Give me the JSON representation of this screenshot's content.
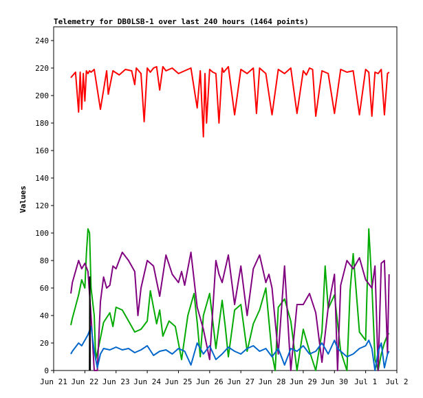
{
  "chart_data": {
    "type": "line",
    "title": "Telemetry for DB0LSB-1 over last 240 hours (1464 points)",
    "xlabel": "",
    "ylabel": "Values",
    "x_ticks": [
      "Jun 21",
      "Jun 22",
      "Jun 23",
      "Jun 24",
      "Jun 25",
      "Jun 26",
      "Jun 27",
      "Jun 28",
      "Jun 29",
      "Jun 30",
      "Jul 1",
      "Jul 2"
    ],
    "xlim": [
      0,
      11
    ],
    "ylim": [
      0,
      250
    ],
    "y_ticks": [
      0,
      20,
      40,
      60,
      80,
      100,
      120,
      140,
      160,
      180,
      200,
      220,
      240
    ],
    "grid": false,
    "series": [
      {
        "color": "#ff0000",
        "x": [
          0.55,
          0.7,
          0.8,
          0.85,
          0.9,
          0.95,
          1.0,
          1.05,
          1.1,
          1.15,
          1.2,
          1.3,
          1.5,
          1.7,
          1.75,
          1.9,
          2.1,
          2.3,
          2.5,
          2.6,
          2.65,
          2.8,
          2.9,
          3.0,
          3.1,
          3.2,
          3.3,
          3.4,
          3.5,
          3.6,
          3.8,
          4.0,
          4.2,
          4.4,
          4.6,
          4.7,
          4.8,
          4.85,
          4.9,
          5.0,
          5.1,
          5.2,
          5.3,
          5.4,
          5.45,
          5.6,
          5.8,
          6.0,
          6.2,
          6.4,
          6.5,
          6.6,
          6.7,
          6.8,
          7.0,
          7.2,
          7.4,
          7.6,
          7.8,
          8.0,
          8.1,
          8.2,
          8.3,
          8.4,
          8.6,
          8.8,
          9.0,
          9.2,
          9.4,
          9.6,
          9.8,
          10.0,
          10.1,
          10.2,
          10.3,
          10.4,
          10.5,
          10.6,
          10.7,
          10.75
        ],
        "values": [
          213,
          217,
          188,
          217,
          190,
          216,
          196,
          218,
          216,
          218,
          217,
          219,
          190,
          218,
          201,
          218,
          215,
          219,
          218,
          208,
          220,
          216,
          181,
          220,
          217,
          220,
          221,
          204,
          221,
          218,
          220,
          216,
          218,
          220,
          191,
          218,
          170,
          216,
          180,
          219,
          217,
          216,
          180,
          220,
          217,
          221,
          186,
          219,
          216,
          220,
          187,
          220,
          218,
          216,
          186,
          219,
          216,
          220,
          187,
          218,
          215,
          220,
          219,
          185,
          218,
          216,
          187,
          219,
          217,
          218,
          186,
          219,
          217,
          185,
          217,
          216,
          219,
          186,
          216,
          217
        ]
      },
      {
        "color": "#00aa00",
        "x": [
          0.55,
          0.6,
          0.8,
          0.9,
          1.0,
          1.05,
          1.1,
          1.15,
          1.2,
          1.3,
          1.35,
          1.45,
          1.6,
          1.8,
          1.9,
          2.0,
          2.2,
          2.4,
          2.6,
          2.8,
          3.0,
          3.1,
          3.3,
          3.4,
          3.5,
          3.7,
          3.9,
          4.1,
          4.3,
          4.5,
          4.6,
          4.7,
          4.8,
          5.0,
          5.2,
          5.4,
          5.5,
          5.6,
          5.8,
          6.0,
          6.2,
          6.4,
          6.6,
          6.8,
          7.0,
          7.1,
          7.2,
          7.4,
          7.6,
          7.8,
          8.0,
          8.2,
          8.4,
          8.6,
          8.7,
          8.8,
          9.0,
          9.2,
          9.4,
          9.5,
          9.6,
          9.8,
          10.0,
          10.1,
          10.2,
          10.3,
          10.4,
          10.5,
          10.6,
          10.7,
          10.75
        ],
        "values": [
          33,
          38,
          55,
          66,
          60,
          85,
          103,
          100,
          60,
          40,
          8,
          18,
          35,
          42,
          32,
          46,
          44,
          36,
          28,
          30,
          36,
          58,
          34,
          44,
          25,
          36,
          32,
          8,
          40,
          56,
          35,
          10,
          40,
          56,
          16,
          51,
          32,
          10,
          44,
          48,
          14,
          34,
          44,
          60,
          12,
          0,
          46,
          52,
          36,
          0,
          30,
          14,
          0,
          28,
          76,
          45,
          55,
          14,
          0,
          58,
          85,
          28,
          22,
          103,
          62,
          8,
          0,
          12,
          20,
          26,
          27
        ]
      },
      {
        "color": "#800080",
        "x": [
          0.55,
          0.6,
          0.8,
          0.9,
          1.0,
          1.1,
          1.2,
          1.3,
          1.4,
          1.5,
          1.6,
          1.7,
          1.8,
          1.9,
          2.0,
          2.2,
          2.4,
          2.6,
          2.7,
          2.8,
          3.0,
          3.2,
          3.4,
          3.6,
          3.8,
          4.0,
          4.1,
          4.2,
          4.4,
          4.6,
          4.8,
          5.0,
          5.2,
          5.3,
          5.4,
          5.6,
          5.8,
          6.0,
          6.2,
          6.4,
          6.6,
          6.8,
          6.9,
          7.0,
          7.2,
          7.4,
          7.6,
          7.8,
          8.0,
          8.2,
          8.4,
          8.6,
          8.8,
          9.0,
          9.1,
          9.2,
          9.4,
          9.6,
          9.8,
          10.0,
          10.2,
          10.3,
          10.4,
          10.5,
          10.6,
          10.7,
          10.75
        ],
        "values": [
          56,
          64,
          80,
          74,
          78,
          72,
          40,
          0,
          0,
          50,
          68,
          60,
          62,
          76,
          74,
          86,
          80,
          72,
          40,
          60,
          80,
          76,
          54,
          84,
          70,
          64,
          72,
          62,
          86,
          46,
          30,
          8,
          80,
          70,
          64,
          84,
          48,
          76,
          40,
          74,
          84,
          64,
          70,
          60,
          12,
          76,
          0,
          48,
          48,
          56,
          42,
          6,
          46,
          70,
          0,
          62,
          80,
          74,
          82,
          66,
          60,
          76,
          0,
          78,
          80,
          12,
          70
        ]
      },
      {
        "color": "#0066cc",
        "x": [
          0.55,
          0.6,
          0.8,
          0.9,
          1.0,
          1.1,
          1.2,
          1.3,
          1.4,
          1.5,
          1.6,
          1.8,
          2.0,
          2.2,
          2.4,
          2.6,
          2.8,
          3.0,
          3.2,
          3.4,
          3.6,
          3.8,
          4.0,
          4.2,
          4.4,
          4.6,
          4.8,
          5.0,
          5.2,
          5.4,
          5.6,
          5.8,
          6.0,
          6.2,
          6.4,
          6.6,
          6.8,
          7.0,
          7.2,
          7.4,
          7.6,
          7.8,
          8.0,
          8.2,
          8.4,
          8.6,
          8.8,
          9.0,
          9.1,
          9.2,
          9.4,
          9.6,
          9.8,
          10.0,
          10.1,
          10.2,
          10.3,
          10.4,
          10.5,
          10.6,
          10.7,
          10.75
        ],
        "values": [
          12,
          14,
          20,
          18,
          22,
          26,
          32,
          14,
          2,
          12,
          16,
          15,
          17,
          15,
          16,
          13,
          15,
          18,
          11,
          14,
          15,
          12,
          16,
          14,
          4,
          20,
          12,
          18,
          8,
          12,
          17,
          14,
          12,
          16,
          18,
          14,
          16,
          10,
          16,
          4,
          16,
          14,
          18,
          12,
          14,
          20,
          12,
          22,
          16,
          14,
          10,
          12,
          16,
          18,
          22,
          16,
          0,
          14,
          20,
          2,
          12,
          14
        ]
      },
      {
        "color": "#000000",
        "x": [
          1.15,
          1.16,
          1.17
        ],
        "values": [
          0,
          68,
          0
        ]
      }
    ]
  }
}
